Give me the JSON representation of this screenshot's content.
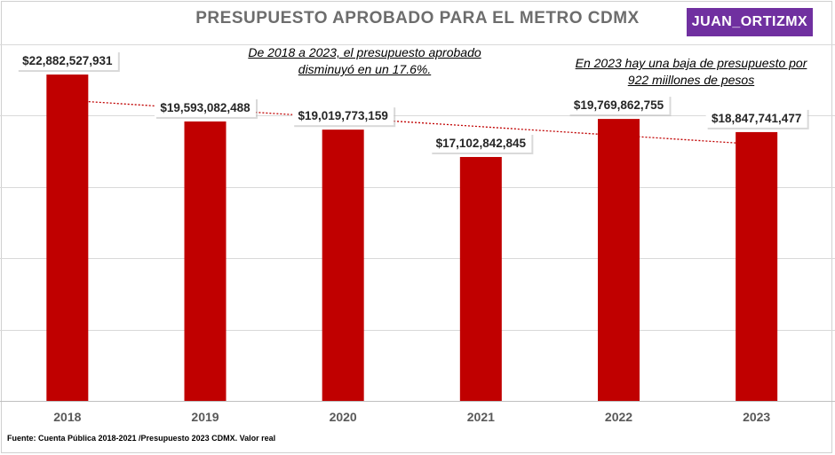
{
  "header": {
    "title": "PRESUPUESTO APROBADO PARA EL METRO CDMX",
    "badge": "JUAN_ORTIZMX"
  },
  "notes": {
    "note1_line1": "De 2018 a 2023, el presupuesto aprobado",
    "note1_line2": "disminuyó en un 17.6%.",
    "note2_line1": "En 2023 hay una baja de presupuesto por",
    "note2_line2": "922 miillones  de pesos"
  },
  "footer": {
    "source": "Fuente: Cuenta Pública 2018-2021 /Presupuesto 2023 CDMX. Valor real"
  },
  "colors": {
    "bar": "#c00000",
    "badge": "#7030a0",
    "title": "#6d6d6d"
  },
  "chart_data": {
    "type": "bar",
    "title": "PRESUPUESTO APROBADO PARA EL METRO CDMX",
    "xlabel": "",
    "ylabel": "",
    "categories": [
      "2018",
      "2019",
      "2020",
      "2021",
      "2022",
      "2023"
    ],
    "values": [
      22882527931,
      19593082488,
      19019773159,
      17102842845,
      19769862755,
      18847741477
    ],
    "data_labels": [
      "$22,882,527,931",
      "$19,593,082,488",
      "$19,019,773,159",
      "$17,102,842,845",
      "$19,769,862,755",
      "$18,847,741,477"
    ],
    "ylim": [
      0,
      25000000000
    ],
    "gridlines": [
      0,
      5000000000,
      10000000000,
      15000000000,
      20000000000,
      25000000000
    ],
    "trendline": "linear",
    "grid": true,
    "legend": "none"
  }
}
